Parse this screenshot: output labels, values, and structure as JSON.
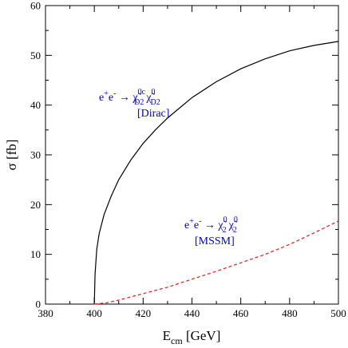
{
  "chart_data": {
    "type": "line",
    "title": "",
    "xlabel": {
      "base": "E",
      "sub": "cm",
      "unit": " [GeV]"
    },
    "ylabel": "σ [fb]",
    "xlim": [
      380,
      500
    ],
    "ylim": [
      0,
      60
    ],
    "xticks": [
      "380",
      "400",
      "420",
      "440",
      "460",
      "480",
      "500"
    ],
    "yticks": [
      "0",
      "10",
      "20",
      "30",
      "40",
      "50",
      "60"
    ],
    "grid": false,
    "series": [
      {
        "name": "e+e- → χ̃0c D2 χ̃0 D2 [Dirac]",
        "color": "#000000",
        "dash": "solid",
        "x": [
          400,
          400.3,
          401,
          402,
          404,
          407,
          410,
          415,
          420,
          425,
          430,
          440,
          450,
          460,
          470,
          480,
          490,
          500
        ],
        "y": [
          0,
          6.0,
          11.0,
          14.2,
          18.0,
          21.8,
          25.0,
          29.0,
          32.3,
          35.0,
          37.4,
          41.5,
          44.7,
          47.3,
          49.3,
          50.9,
          52.0,
          52.8
        ]
      },
      {
        "name": "e+e- → χ̃0 2 χ̃0 2 [MSSM]",
        "color": "#e41a1c",
        "dash": "dashed",
        "x": [
          400,
          405,
          410,
          420,
          430,
          440,
          450,
          460,
          470,
          480,
          490,
          500
        ],
        "y": [
          0,
          0.25,
          0.8,
          2.1,
          3.4,
          5.0,
          6.6,
          8.3,
          10.0,
          12.0,
          14.3,
          16.7
        ]
      }
    ],
    "annotations": [
      {
        "id": "dirac",
        "color": "#0000cc",
        "line1": {
          "lhs": "e",
          "sup1": "+",
          "e2": "e",
          "sup2": "-",
          "arrow": " → ",
          "chi1": "χ̃",
          "chi1_sup": "0c",
          "chi1_sub": "D2",
          "chi2": "χ̃",
          "chi2_sup": "0",
          "chi2_sub": "D2"
        },
        "line2": "[Dirac]"
      },
      {
        "id": "mssm",
        "color": "#0000cc",
        "line1": {
          "lhs": "e",
          "sup1": "+",
          "e2": "e",
          "sup2": "-",
          "arrow": " → ",
          "chi1": "χ̃",
          "chi1_sup": "0",
          "chi1_sub": "2",
          "chi2": "χ̃",
          "chi2_sup": "0",
          "chi2_sub": "2"
        },
        "line2": "[MSSM]"
      }
    ]
  }
}
